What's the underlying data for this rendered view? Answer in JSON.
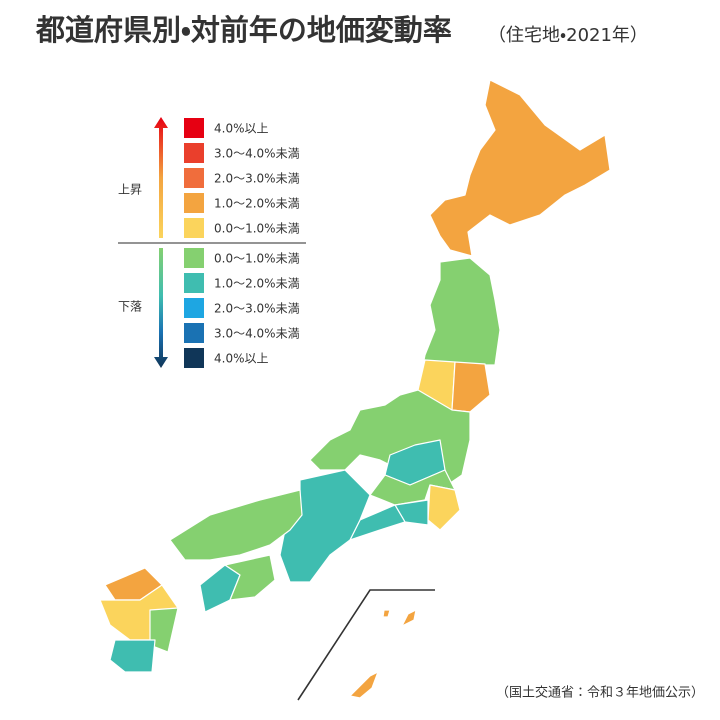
{
  "header": {
    "title": "都道府県別・対前年の地価変動率",
    "subtitle": "（住宅地・2021年）"
  },
  "legend": {
    "rise": {
      "label": "上昇",
      "items": [
        {
          "label": "4.0%以上",
          "color": "#e60012"
        },
        {
          "label": "3.0〜4.0%未満",
          "color": "#ea3f2c"
        },
        {
          "label": "2.0〜3.0%未満",
          "color": "#f06d3c"
        },
        {
          "label": "1.0〜2.0%未満",
          "color": "#f3a440"
        },
        {
          "label": "0.0〜1.0%未満",
          "color": "#fbd45c"
        }
      ]
    },
    "fall": {
      "label": "下落",
      "items": [
        {
          "label": "0.0〜1.0%未満",
          "color": "#85d070"
        },
        {
          "label": "1.0〜2.0%未満",
          "color": "#3fbdb0"
        },
        {
          "label": "2.0〜3.0%未満",
          "color": "#1ea6e2"
        },
        {
          "label": "3.0〜4.0%未満",
          "color": "#1a72b3"
        },
        {
          "label": "4.0%以上",
          "color": "#103658"
        }
      ]
    }
  },
  "source": "（国土交通省：令和３年地価公示）"
}
